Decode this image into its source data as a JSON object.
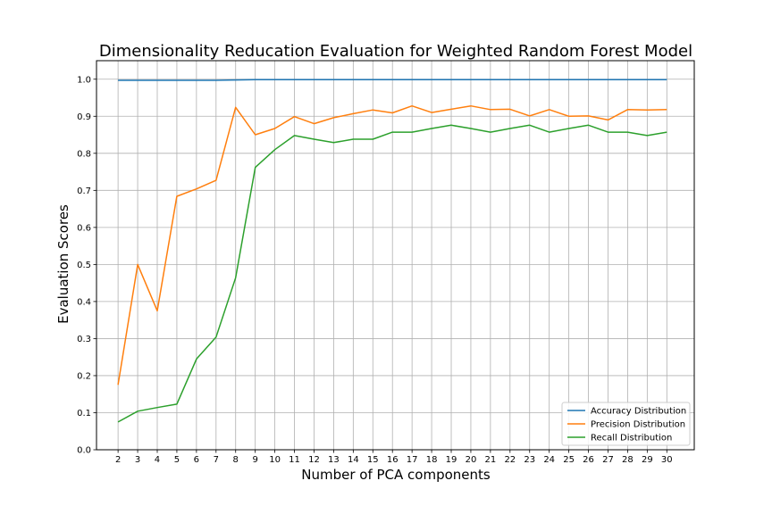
{
  "chart_data": {
    "type": "line",
    "title": "Dimensionality Reducation Evaluation for Weighted Random Forest Model",
    "xlabel": "Number of PCA components",
    "ylabel": "Evaluation Scores",
    "x": [
      2,
      3,
      4,
      5,
      6,
      7,
      8,
      9,
      10,
      11,
      12,
      13,
      14,
      15,
      16,
      17,
      18,
      19,
      20,
      21,
      22,
      23,
      24,
      25,
      26,
      27,
      28,
      29,
      30
    ],
    "xlim": [
      0.9,
      31.4
    ],
    "ylim": [
      0.0,
      1.05
    ],
    "yticks": [
      0.0,
      0.1,
      0.2,
      0.3,
      0.4,
      0.5,
      0.6,
      0.7,
      0.8,
      0.9,
      1.0
    ],
    "grid": true,
    "legend_position": "lower-right",
    "series": [
      {
        "name": "Accuracy Distribution",
        "color": "#1f77b4",
        "values": [
          0.997,
          0.997,
          0.997,
          0.997,
          0.997,
          0.997,
          0.998,
          0.999,
          0.999,
          0.999,
          0.999,
          0.999,
          0.999,
          0.999,
          0.999,
          0.999,
          0.999,
          0.999,
          0.999,
          0.999,
          0.999,
          0.999,
          0.999,
          0.999,
          0.999,
          0.999,
          0.999,
          0.999,
          0.999
        ]
      },
      {
        "name": "Precision Distribution",
        "color": "#ff7f0e",
        "values": [
          0.175,
          0.5,
          0.375,
          0.684,
          0.704,
          0.727,
          0.924,
          0.85,
          0.867,
          0.899,
          0.88,
          0.896,
          0.907,
          0.917,
          0.909,
          0.928,
          0.91,
          0.919,
          0.928,
          0.918,
          0.919,
          0.901,
          0.918,
          0.9,
          0.901,
          0.89,
          0.918,
          0.917,
          0.918
        ]
      },
      {
        "name": "Recall Distribution",
        "color": "#2ca02c",
        "values": [
          0.075,
          0.104,
          0.114,
          0.123,
          0.245,
          0.304,
          0.464,
          0.762,
          0.81,
          0.848,
          0.838,
          0.829,
          0.838,
          0.838,
          0.857,
          0.857,
          0.867,
          0.876,
          0.867,
          0.857,
          0.867,
          0.876,
          0.857,
          0.867,
          0.876,
          0.857,
          0.857,
          0.848,
          0.857
        ]
      }
    ]
  }
}
